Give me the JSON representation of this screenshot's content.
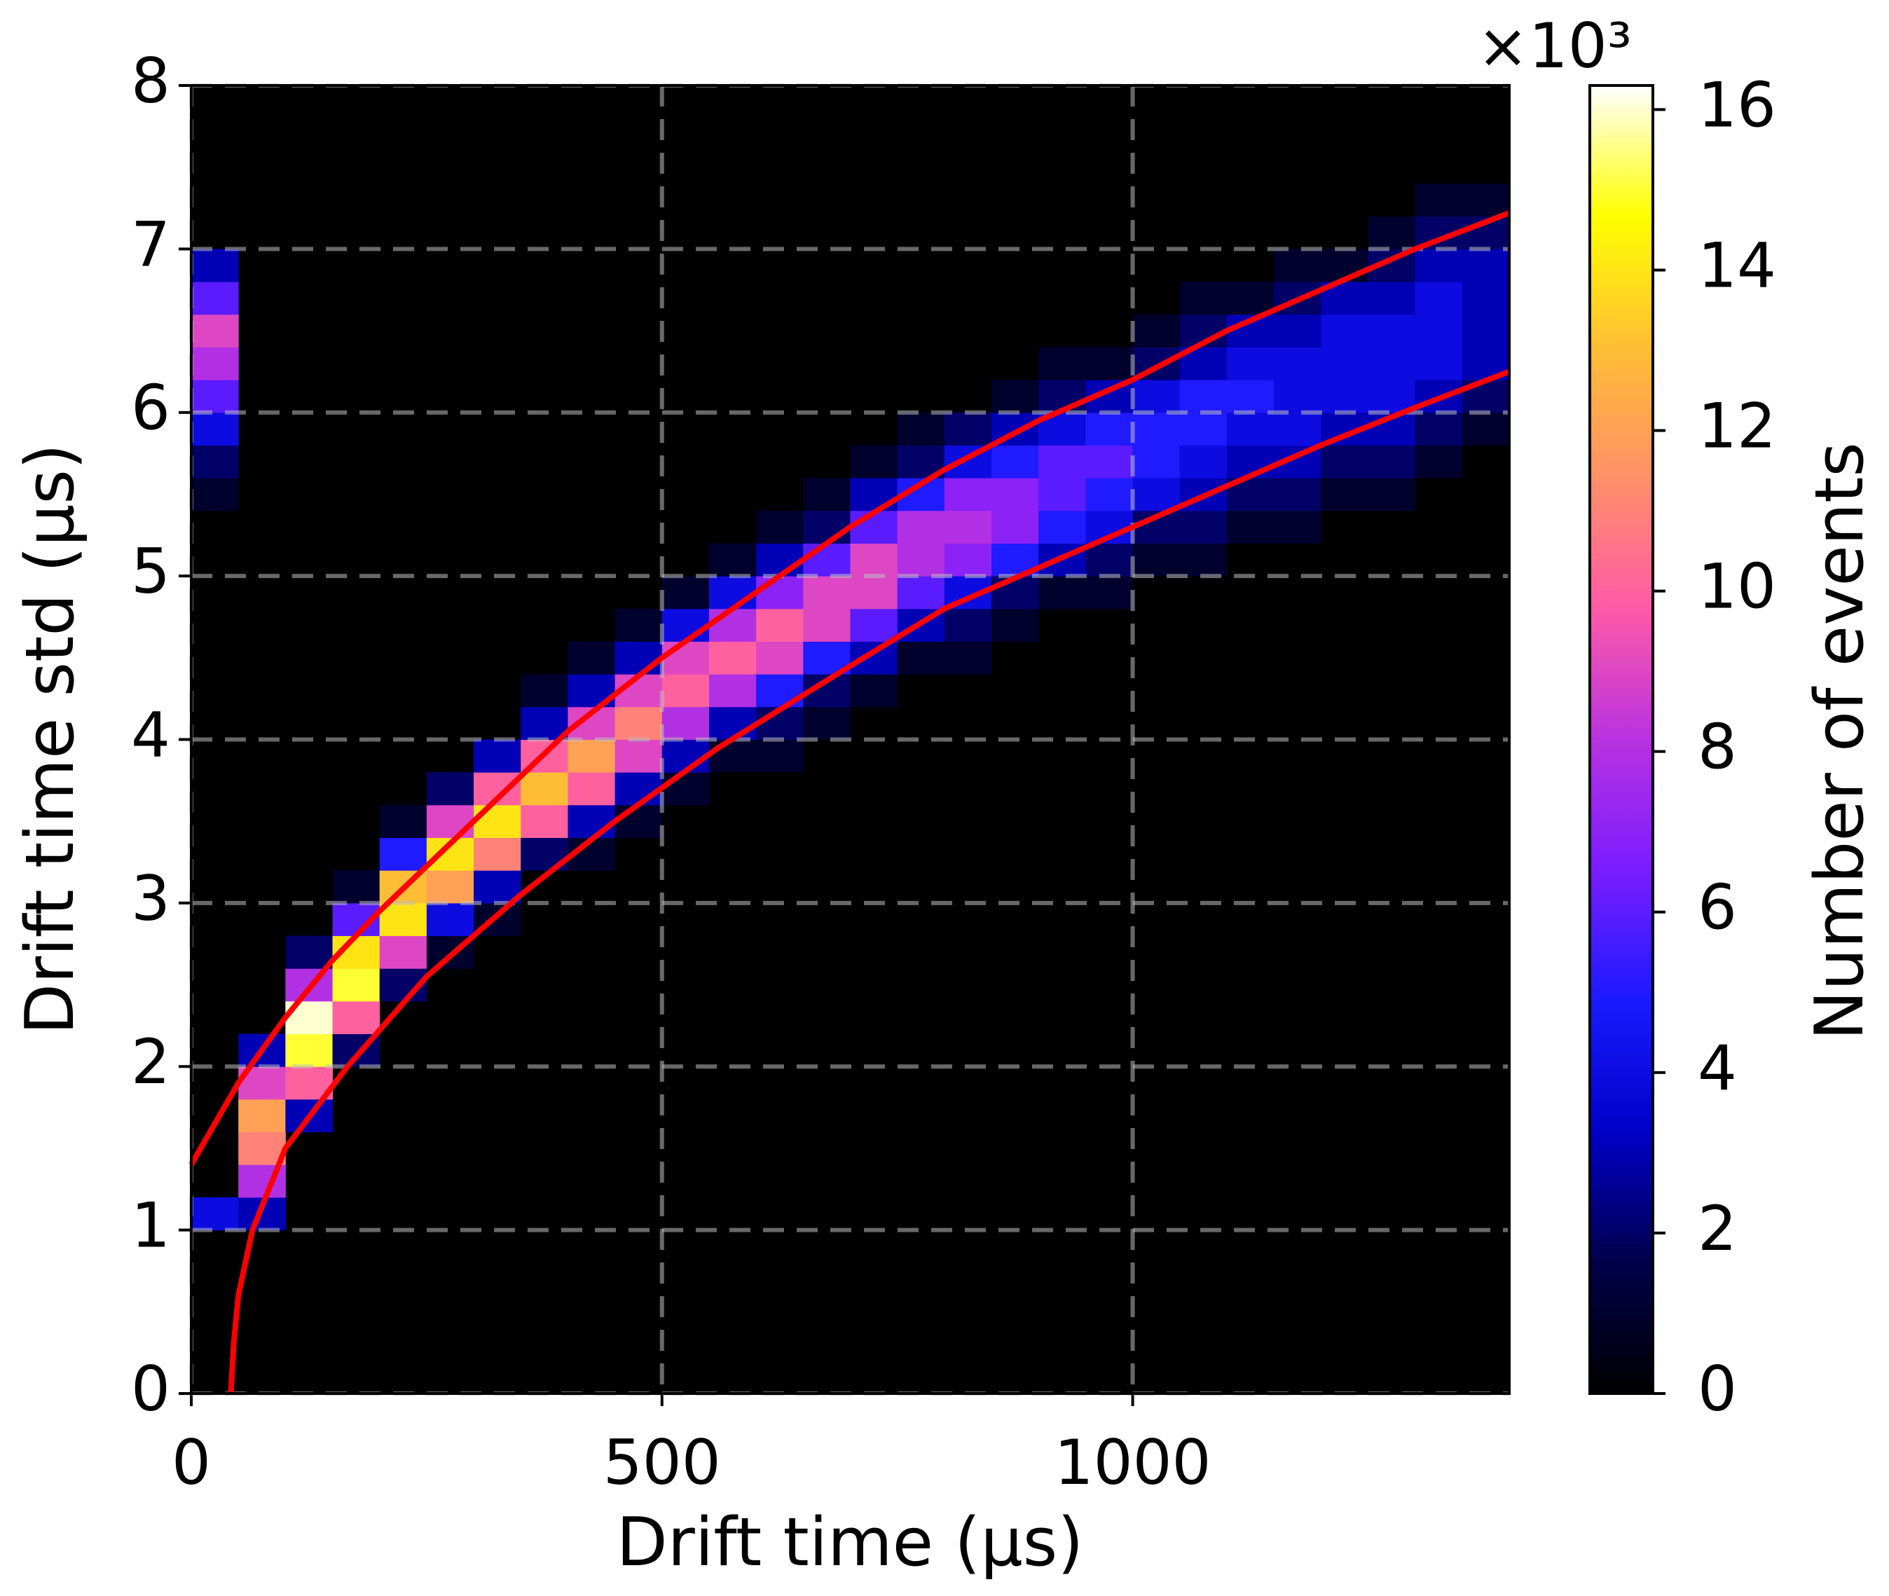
{
  "chart_data": {
    "type": "hist2d",
    "xlabel": "Drift time (μs)",
    "ylabel": "Drift time std (μs)",
    "colorbar_label": "Number of events",
    "colorbar_offset_label": "×10³",
    "xlim": [
      0,
      1400
    ],
    "ylim": [
      0,
      8
    ],
    "xticks": [
      0,
      500,
      1000
    ],
    "yticks": [
      0,
      1,
      2,
      3,
      4,
      5,
      6,
      7,
      8
    ],
    "clim": [
      0,
      16.3
    ],
    "cticks": [
      0,
      2,
      4,
      6,
      8,
      10,
      12,
      14,
      16
    ],
    "grid": true,
    "background": "#000000",
    "colormap": [
      "#000000",
      "#00004a",
      "#0000c8",
      "#1a1aff",
      "#7a1cff",
      "#b832e0",
      "#ff5aa8",
      "#ff9068",
      "#ffbe34",
      "#ffff00",
      "#ffffff"
    ],
    "bin_width": 50,
    "bin_height": 0.2,
    "columns": [
      {
        "x": 0,
        "y0": 5.4,
        "counts": [
          1,
          2,
          4,
          6,
          8,
          9,
          6,
          3
        ]
      },
      {
        "x": 0,
        "y0": 1.0,
        "counts": [
          4
        ]
      },
      {
        "x": 50,
        "y0": 1.0,
        "counts": [
          3,
          8,
          11,
          12,
          9,
          3
        ]
      },
      {
        "x": 100,
        "y0": 1.6,
        "counts": [
          3,
          10,
          15,
          16,
          8,
          2
        ]
      },
      {
        "x": 150,
        "y0": 2.0,
        "counts": [
          2,
          10,
          15,
          14,
          6,
          1
        ]
      },
      {
        "x": 200,
        "y0": 2.4,
        "counts": [
          2,
          9,
          14,
          13,
          5,
          1
        ]
      },
      {
        "x": 250,
        "y0": 2.6,
        "counts": [
          1,
          4,
          12,
          14,
          9,
          2
        ]
      },
      {
        "x": 300,
        "y0": 2.8,
        "counts": [
          1,
          3,
          11,
          14,
          10,
          3
        ]
      },
      {
        "x": 350,
        "y0": 3.2,
        "counts": [
          2,
          10,
          13,
          10,
          3,
          1
        ]
      },
      {
        "x": 400,
        "y0": 3.2,
        "counts": [
          1,
          3,
          10,
          12,
          9,
          3,
          1
        ]
      },
      {
        "x": 450,
        "y0": 3.4,
        "counts": [
          1,
          3,
          9,
          11,
          9,
          3,
          1
        ]
      },
      {
        "x": 500,
        "y0": 3.6,
        "counts": [
          1,
          3,
          8,
          10,
          9,
          4,
          1
        ]
      },
      {
        "x": 550,
        "y0": 3.8,
        "counts": [
          1,
          3,
          8,
          10,
          8,
          4,
          1
        ]
      },
      {
        "x": 600,
        "y0": 3.8,
        "counts": [
          1,
          2,
          5,
          9,
          10,
          7,
          3,
          1
        ]
      },
      {
        "x": 650,
        "y0": 4.0,
        "counts": [
          1,
          2,
          5,
          9,
          9,
          6,
          2,
          1
        ]
      },
      {
        "x": 700,
        "y0": 4.2,
        "counts": [
          1,
          3,
          6,
          9,
          9,
          6,
          3,
          1
        ]
      },
      {
        "x": 750,
        "y0": 4.4,
        "counts": [
          1,
          3,
          6,
          8,
          8,
          5,
          2,
          1
        ]
      },
      {
        "x": 800,
        "y0": 4.4,
        "counts": [
          1,
          2,
          4,
          7,
          8,
          7,
          4,
          2
        ]
      },
      {
        "x": 850,
        "y0": 4.6,
        "counts": [
          1,
          2,
          5,
          7,
          7,
          5,
          3,
          1
        ]
      },
      {
        "x": 900,
        "y0": 4.8,
        "counts": [
          1,
          3,
          5,
          6,
          6,
          4,
          2,
          1
        ]
      },
      {
        "x": 950,
        "y0": 4.8,
        "counts": [
          1,
          2,
          4,
          5,
          6,
          5,
          3,
          1
        ]
      },
      {
        "x": 1000,
        "y0": 5.0,
        "counts": [
          1,
          2,
          4,
          5,
          5,
          4,
          2,
          1
        ]
      },
      {
        "x": 1050,
        "y0": 5.0,
        "counts": [
          1,
          2,
          3,
          4,
          5,
          5,
          3,
          2,
          1
        ]
      },
      {
        "x": 1100,
        "y0": 5.2,
        "counts": [
          1,
          2,
          3,
          4,
          5,
          4,
          3,
          1
        ]
      },
      {
        "x": 1150,
        "y0": 5.2,
        "counts": [
          1,
          2,
          3,
          4,
          4,
          4,
          3,
          2,
          1
        ]
      },
      {
        "x": 1200,
        "y0": 5.4,
        "counts": [
          1,
          2,
          3,
          4,
          4,
          4,
          3,
          1
        ]
      },
      {
        "x": 1250,
        "y0": 5.4,
        "counts": [
          1,
          2,
          3,
          4,
          4,
          4,
          3,
          2,
          1
        ]
      },
      {
        "x": 1300,
        "y0": 5.6,
        "counts": [
          1,
          2,
          3,
          4,
          4,
          4,
          3,
          2,
          1
        ]
      },
      {
        "x": 1350,
        "y0": 5.8,
        "counts": [
          1,
          2,
          3,
          3,
          3,
          3,
          2,
          1
        ]
      }
    ],
    "lines": [
      {
        "color": "#ff0000",
        "x": [
          0,
          50,
          100,
          150,
          200,
          300,
          400,
          500,
          600,
          700,
          800,
          900,
          1000,
          1100,
          1200,
          1300,
          1400
        ],
        "y": [
          1.4,
          1.9,
          2.3,
          2.65,
          2.95,
          3.5,
          4.05,
          4.5,
          4.9,
          5.3,
          5.65,
          5.95,
          6.2,
          6.5,
          6.75,
          7.0,
          7.22
        ]
      },
      {
        "color": "#ff0000",
        "x": [
          42,
          45,
          50,
          65,
          100,
          166,
          250,
          350,
          450,
          560,
          700,
          800,
          900,
          1000,
          1100,
          1200,
          1300,
          1400
        ],
        "y": [
          0,
          0.3,
          0.6,
          1.0,
          1.5,
          2.0,
          2.55,
          3.05,
          3.5,
          3.95,
          4.45,
          4.8,
          5.05,
          5.3,
          5.55,
          5.8,
          6.03,
          6.25
        ]
      }
    ]
  }
}
